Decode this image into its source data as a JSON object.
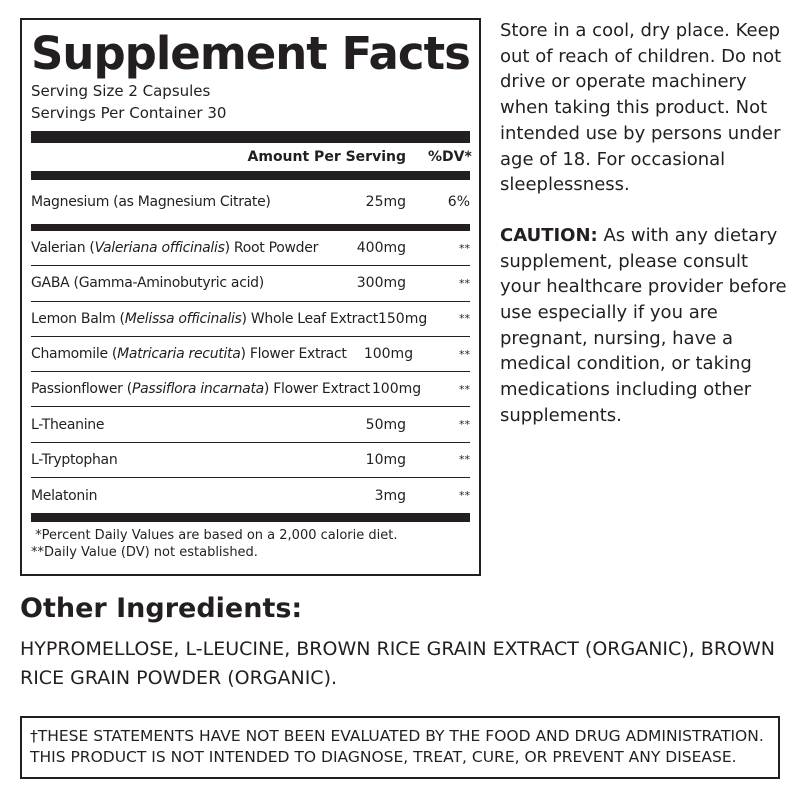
{
  "facts": {
    "title": "Supplement Facts",
    "serving_size": "Serving Size 2 Capsules",
    "servings_per_container": "Servings Per Container 30",
    "col_amount": "Amount Per Serving",
    "col_dv": "%DV*",
    "first": {
      "name": "Magnesium (as Magnesium Citrate)",
      "amount": "25mg",
      "dv": "6%"
    },
    "rows": [
      {
        "pre": "Valerian (",
        "latin": "Valeriana officinalis",
        "post": ") Root Powder",
        "amount": "400mg",
        "dv": "**"
      },
      {
        "pre": "GABA (Gamma-Aminobutyric acid)",
        "latin": "",
        "post": "",
        "amount": "300mg",
        "dv": "**"
      },
      {
        "pre": "Lemon Balm (",
        "latin": "Melissa officinalis",
        "post": ") Whole Leaf Extract",
        "amount": "150mg",
        "dv": "**"
      },
      {
        "pre": "Chamomile (",
        "latin": "Matricaria recutita",
        "post": ") Flower Extract",
        "amount": "100mg",
        "dv": "**"
      },
      {
        "pre": "Passionflower (",
        "latin": "Passiflora incarnata",
        "post": ") Flower Extract",
        "amount": "100mg",
        "dv": "**"
      },
      {
        "pre": "L-Theanine",
        "latin": "",
        "post": "",
        "amount": "50mg",
        "dv": "**"
      },
      {
        "pre": "L-Tryptophan",
        "latin": "",
        "post": "",
        "amount": "10mg",
        "dv": "**"
      },
      {
        "pre": "Melatonin",
        "latin": "",
        "post": "",
        "amount": "3mg",
        "dv": "**"
      }
    ],
    "footnote1": " *Percent Daily Values are based on a 2,000 calorie diet.",
    "footnote2": "**Daily Value (DV) not established."
  },
  "side": {
    "storage": "Store in a cool, dry place. Keep out of reach of children. Do not drive or operate machinery when taking this product. Not intended use by persons under age of 18. For occasional sleeplessness.",
    "caution_label": "CAUTION:",
    "caution": " As with any dietary supplement, please consult your healthcare provider before use especially if you are pregnant, nursing, have a medical condition, or taking medications including other supplements."
  },
  "other": {
    "title": "Other Ingredients:",
    "text": "HYPROMELLOSE, L-LEUCINE, BROWN RICE GRAIN EXTRACT (ORGANIC), BROWN RICE GRAIN POWDER (ORGANIC)."
  },
  "disclaimer": {
    "line1": "†THESE STATEMENTS HAVE NOT BEEN EVALUATED BY THE FOOD AND DRUG ADMINISTRATION.",
    "line2": "THIS PRODUCT IS NOT INTENDED TO DIAGNOSE, TREAT, CURE, OR PREVENT ANY DISEASE."
  }
}
